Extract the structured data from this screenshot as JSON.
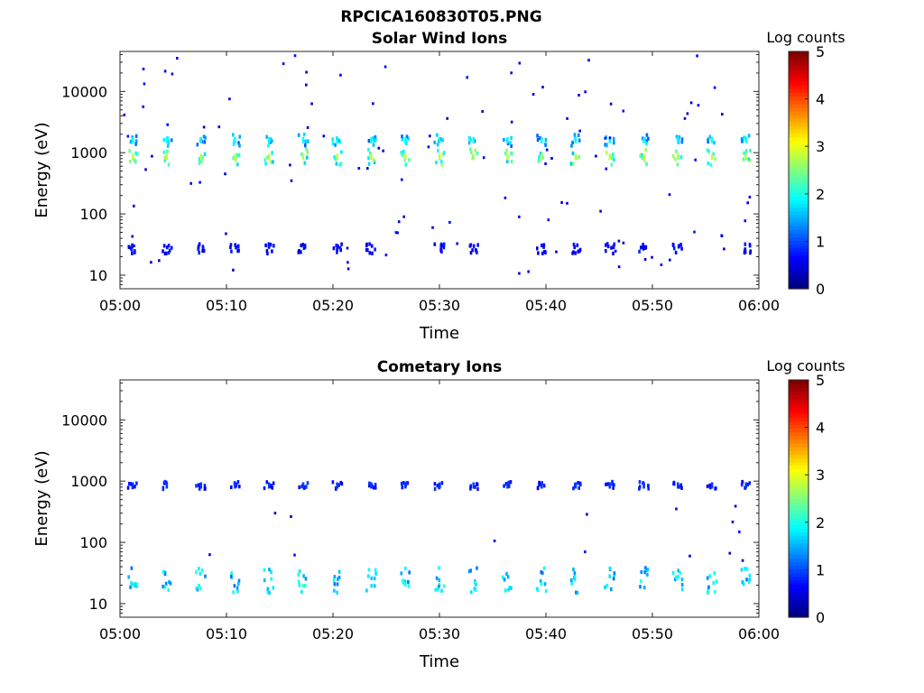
{
  "figure_title": "RPCICA160830T05.PNG",
  "chart_data": [
    {
      "type": "heatmap",
      "title": "Solar Wind Ions",
      "xlabel": "Time",
      "ylabel": "Energy (eV)",
      "x_ticks": [
        "05:00",
        "05:10",
        "05:20",
        "05:30",
        "05:40",
        "05:50",
        "06:00"
      ],
      "x_range": [
        "05:00",
        "06:00"
      ],
      "y_scale": "log",
      "y_ticks": [
        "10",
        "100",
        "1000",
        "10000"
      ],
      "y_range": [
        6,
        45000
      ],
      "colorbar": {
        "label": "Log counts",
        "ticks": [
          "0",
          "1",
          "2",
          "3",
          "4",
          "5"
        ],
        "range": [
          0,
          5
        ],
        "colormap": "jet"
      },
      "sweep_times_min": [
        1.2,
        4.4,
        7.6,
        10.8,
        14.0,
        17.2,
        20.4,
        23.6,
        26.8,
        30.0,
        33.2,
        36.4,
        39.6,
        42.8,
        46.0,
        49.2,
        52.4,
        55.6,
        58.8
      ],
      "blobs": [
        {
          "energy_eV": 850,
          "log_counts_peak": 2.8,
          "width_factor": 1.35,
          "at_every_sweep": true
        },
        {
          "energy_eV": 1600,
          "log_counts_peak": 1.9,
          "width_factor": 1.25,
          "at_every_sweep": true
        },
        {
          "energy_eV": 27,
          "log_counts_peak": 0.8,
          "width_factor": 1.2,
          "at_every_sweep": false
        }
      ],
      "background": "scattered single counts (log counts ~0.5) across 10–40000 eV",
      "grid": false
    },
    {
      "type": "heatmap",
      "title": "Cometary Ions",
      "xlabel": "Time",
      "ylabel": "Energy (eV)",
      "x_ticks": [
        "05:00",
        "05:10",
        "05:20",
        "05:30",
        "05:40",
        "05:50",
        "06:00"
      ],
      "x_range": [
        "05:00",
        "06:00"
      ],
      "y_scale": "log",
      "y_ticks": [
        "10",
        "100",
        "1000",
        "10000"
      ],
      "y_range": [
        6,
        45000
      ],
      "colorbar": {
        "label": "Log counts",
        "ticks": [
          "0",
          "1",
          "2",
          "3",
          "4",
          "5"
        ],
        "range": [
          0,
          5
        ],
        "colormap": "jet"
      },
      "sweep_times_min": [
        1.2,
        4.4,
        7.6,
        10.8,
        14.0,
        17.2,
        20.4,
        23.6,
        26.8,
        30.0,
        33.2,
        36.4,
        39.6,
        42.8,
        46.0,
        49.2,
        52.4,
        55.6,
        58.8
      ],
      "blobs": [
        {
          "energy_eV": 850,
          "log_counts_peak": 0.9,
          "width_factor": 1.15,
          "at_every_sweep": true
        },
        {
          "energy_eV": 24,
          "log_counts_peak": 2.1,
          "width_factor": 1.6,
          "at_every_sweep": true
        }
      ],
      "background": "few scattered single counts (log counts ~0.5) between 50 and 400 eV",
      "grid": false
    }
  ]
}
